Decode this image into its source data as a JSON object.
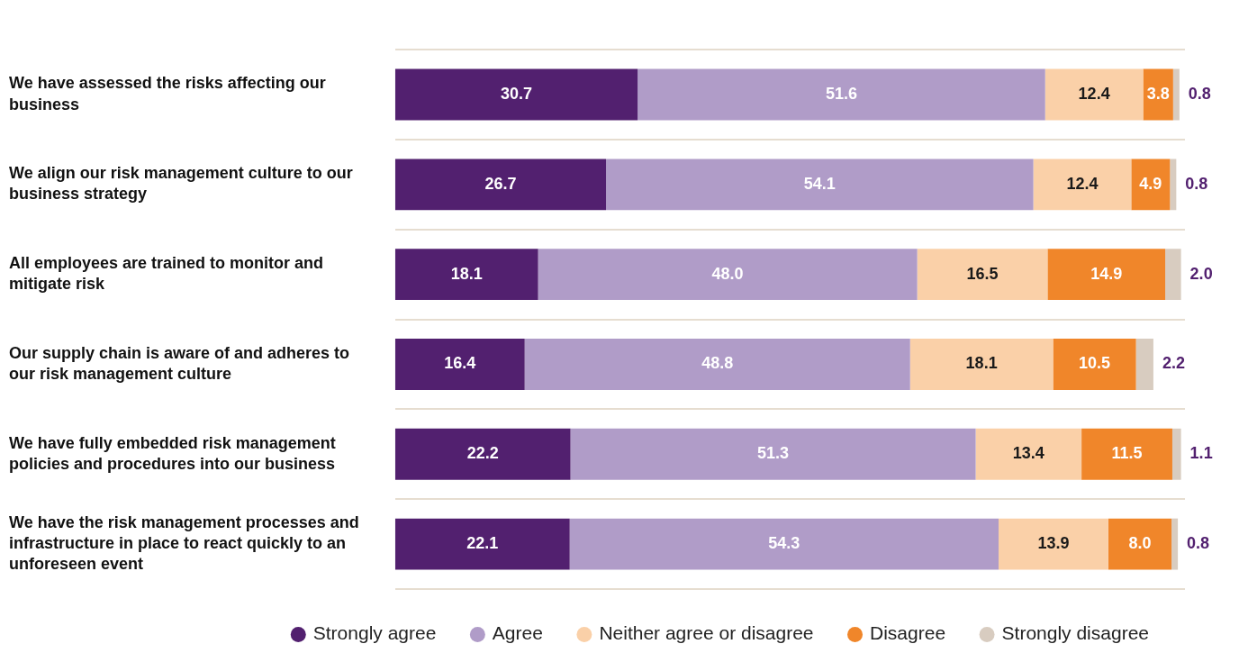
{
  "chart_data": {
    "type": "bar",
    "orientation": "horizontal",
    "stacked": true,
    "categories": [
      "We have assessed the risks affecting our business",
      "We align our risk management culture to our business strategy",
      "All employees are trained to monitor and mitigate risk",
      "Our supply chain is aware of and adheres to our risk management culture",
      "We have fully embedded risk management policies and procedures into our business",
      "We have the risk management processes and infrastructure in place to react quickly to an unforeseen event"
    ],
    "series": [
      {
        "name": "Strongly agree",
        "color": "#52206f",
        "values": [
          30.7,
          26.7,
          18.1,
          16.4,
          22.2,
          22.1
        ],
        "value_labels": [
          "30.7",
          "26.7",
          "18.1",
          "16.4",
          "22.2",
          "22.1"
        ]
      },
      {
        "name": "Agree",
        "color": "#b09cc8",
        "values": [
          51.6,
          54.1,
          48.0,
          48.8,
          51.3,
          54.3
        ],
        "value_labels": [
          "51.6",
          "54.1",
          "48.0",
          "48.8",
          "51.3",
          "54.3"
        ]
      },
      {
        "name": "Neither agree or disagree",
        "color": "#fad0a8",
        "values": [
          12.4,
          12.4,
          16.5,
          18.1,
          13.4,
          13.9
        ],
        "value_labels": [
          "12.4",
          "12.4",
          "16.5",
          "18.1",
          "13.4",
          "13.9"
        ]
      },
      {
        "name": "Disagree",
        "color": "#f0862a",
        "values": [
          3.8,
          4.9,
          14.9,
          10.5,
          11.5,
          8.0
        ],
        "value_labels": [
          "3.8",
          "4.9",
          "14.9",
          "10.5",
          "11.5",
          "8.0"
        ]
      },
      {
        "name": "Strongly disagree",
        "color": "#d8ccc0",
        "values": [
          0.8,
          0.8,
          2.0,
          2.2,
          1.1,
          0.8
        ],
        "value_labels": [
          "0.8",
          "0.8",
          "2.0",
          "2.2",
          "1.1",
          "0.8"
        ]
      }
    ],
    "tick_labels": "y",
    "grid": "y",
    "legend": "bottom"
  }
}
